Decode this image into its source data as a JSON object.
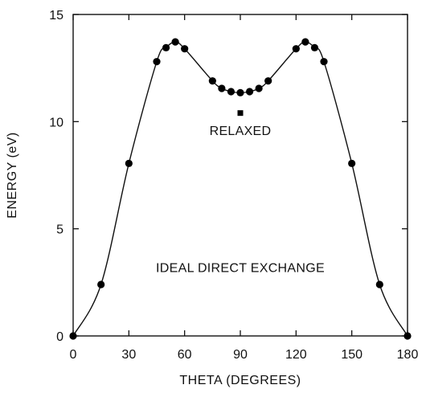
{
  "chart_data": {
    "type": "scatter",
    "xlabel": "THETA (DEGREES)",
    "ylabel": "ENERGY (eV)",
    "xlim": [
      0,
      180
    ],
    "ylim": [
      0,
      15
    ],
    "xticks": [
      0,
      30,
      60,
      90,
      120,
      150,
      180
    ],
    "yticks": [
      0,
      5,
      10,
      15
    ],
    "grid": false,
    "series": [
      {
        "marker": "circle",
        "connected": true,
        "x": [
          0,
          15,
          30,
          45,
          50,
          55,
          60,
          75,
          80,
          85,
          90,
          95,
          100,
          105,
          120,
          125,
          130,
          135,
          150,
          165,
          180
        ],
        "y": [
          0.0,
          2.4,
          8.05,
          12.8,
          13.45,
          13.72,
          13.4,
          11.9,
          11.55,
          11.4,
          11.35,
          11.4,
          11.55,
          11.9,
          13.4,
          13.72,
          13.45,
          12.8,
          8.05,
          2.4,
          0.0
        ]
      },
      {
        "marker": "square",
        "connected": false,
        "x": [
          90
        ],
        "y": [
          10.4
        ]
      }
    ],
    "annotations": [
      {
        "text": "RELAXED",
        "x": 90,
        "y": 9.6
      },
      {
        "text": "IDEAL DIRECT EXCHANGE",
        "x": 90,
        "y": 3.2
      }
    ],
    "line_color": "#111111",
    "marker_color": "#000000"
  }
}
